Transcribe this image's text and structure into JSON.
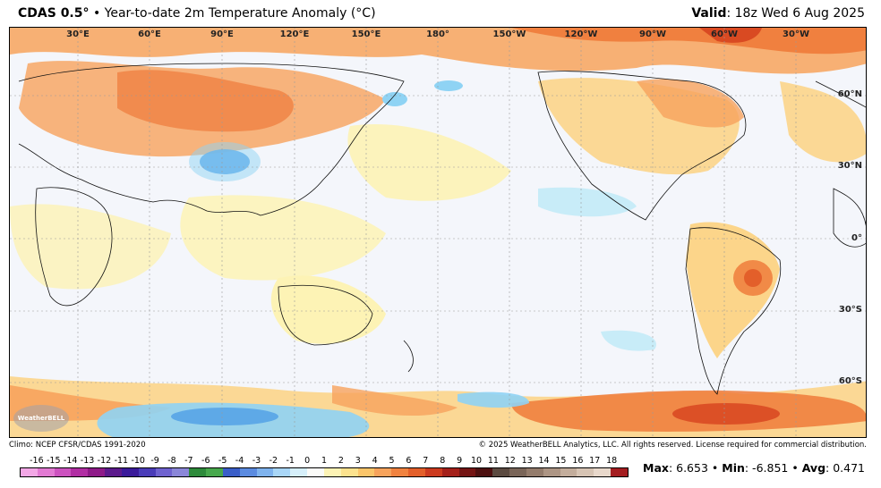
{
  "header": {
    "product": "CDAS 0.5",
    "degree": "°",
    "separator": "•",
    "title": "Year-to-date 2m Temperature Anomaly (°C)",
    "valid_label": "Valid",
    "valid_value": ": 18z Wed 6 Aug 2025"
  },
  "map": {
    "lon_labels": [
      "30°E",
      "60°E",
      "90°E",
      "120°E",
      "150°E",
      "180°",
      "150°W",
      "120°W",
      "90°W",
      "60°W",
      "30°W"
    ],
    "lat_labels": [
      "60°N",
      "30°N",
      "0°",
      "30°S",
      "60°S"
    ],
    "logo_text": "WeatherBELL",
    "colors": {
      "ocean_neutral": "#f4f6fb",
      "warm_light": "#fdf3b5",
      "warm_mid": "#fcd58a",
      "warm_orange": "#f7a35c",
      "warm_strong": "#ee7b3a",
      "warm_red": "#d94a22",
      "cool_light": "#c8ecf8",
      "cool_mid": "#8fd3f4",
      "cool_blue": "#4f9fe6"
    }
  },
  "footer": {
    "climo": "Climo: NCEP CFSR/CDAS 1991-2020",
    "copyright": "© 2025 WeatherBELL Analytics, LLC. All rights reserved. License required for commercial distribution."
  },
  "colorbar": {
    "labels": [
      "-16",
      "-15",
      "-14",
      "-13",
      "-12",
      "-11",
      "-10",
      "-9",
      "-8",
      "-7",
      "-6",
      "-5",
      "-4",
      "-3",
      "-2",
      "-1",
      "0",
      "1",
      "2",
      "3",
      "4",
      "5",
      "6",
      "7",
      "8",
      "9",
      "10",
      "11",
      "12",
      "13",
      "14",
      "15",
      "16",
      "17",
      "18"
    ],
    "colors": [
      "#f3a7e6",
      "#e27ad3",
      "#cc52bf",
      "#b12ea3",
      "#8e1a88",
      "#5c1a8c",
      "#3a1a9a",
      "#4a3cb8",
      "#6f62cf",
      "#8a86d8",
      "#2d8a3a",
      "#47a84c",
      "#3a5ec8",
      "#5b8be0",
      "#7fb3ee",
      "#a9d6f7",
      "#d6effa",
      "#fbfbf8",
      "#fdf3b5",
      "#fce28e",
      "#fbc56a",
      "#f7a35c",
      "#f0823f",
      "#e35f2a",
      "#cc3a1f",
      "#a4201a",
      "#741514",
      "#4d1010",
      "#5b4a40",
      "#7a6558",
      "#947c6c",
      "#ad9584",
      "#c3ad9c",
      "#d7c4b4",
      "#e8d8cb",
      "#a41d20"
    ]
  },
  "stats": {
    "max_label": "Max",
    "max_value": ": 6.653",
    "min_label": "Min",
    "min_value": ": -6.851",
    "avg_label": "Avg",
    "avg_value": ": 0.471",
    "sep": " • "
  }
}
